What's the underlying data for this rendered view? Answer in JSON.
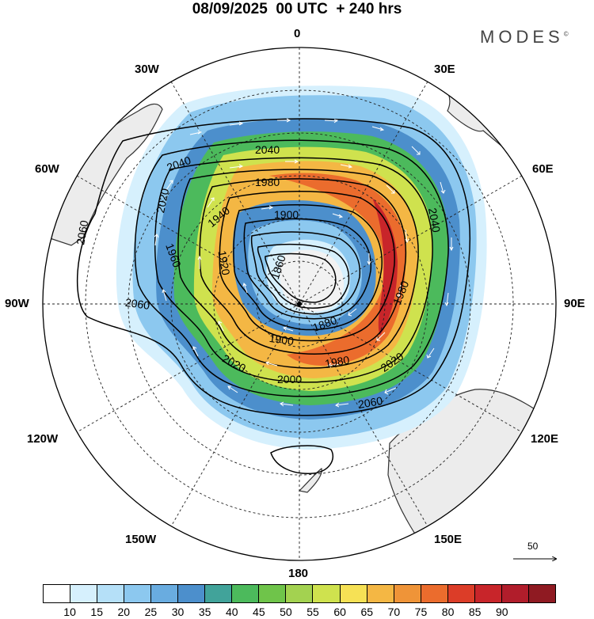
{
  "header": {
    "title": "08/09/2025  00 UTC  + 240 hrs",
    "logo": "MODES",
    "logo_mark": "©"
  },
  "map": {
    "projection": "South polar stereographic",
    "longitude_labels": {
      "lon_0": "0",
      "lon_30e": "30E",
      "lon_60e": "60E",
      "lon_90e": "90E",
      "lon_120e": "120E",
      "lon_150e": "150E",
      "lon_180": "180",
      "lon_150w": "150W",
      "lon_120w": "120W",
      "lon_90w": "90W",
      "lon_60w": "60W",
      "lon_30w": "30W"
    },
    "contour_labels": [
      "2060",
      "2060",
      "2060",
      "2040",
      "2040",
      "2040",
      "2020",
      "2020",
      "2020",
      "2000",
      "1980",
      "1980",
      "1980",
      "1960",
      "1940",
      "1920",
      "1900",
      "1900",
      "1880",
      "1860"
    ],
    "reference_vector": "50"
  },
  "colorbar": {
    "colors": [
      "#ffffff",
      "#d6f0fd",
      "#b5e0f8",
      "#8cc8ef",
      "#69ace0",
      "#4c8fcc",
      "#41a39a",
      "#4cba5c",
      "#6fc44a",
      "#a3d250",
      "#cfe24e",
      "#f6e155",
      "#f4b744",
      "#ef9438",
      "#eb6c2d",
      "#dc3d28",
      "#c8252a",
      "#b11d2b",
      "#8f1a22"
    ],
    "labels": [
      "10",
      "15",
      "20",
      "25",
      "30",
      "35",
      "40",
      "45",
      "50",
      "55",
      "60",
      "65",
      "70",
      "75",
      "80",
      "85",
      "90"
    ]
  }
}
